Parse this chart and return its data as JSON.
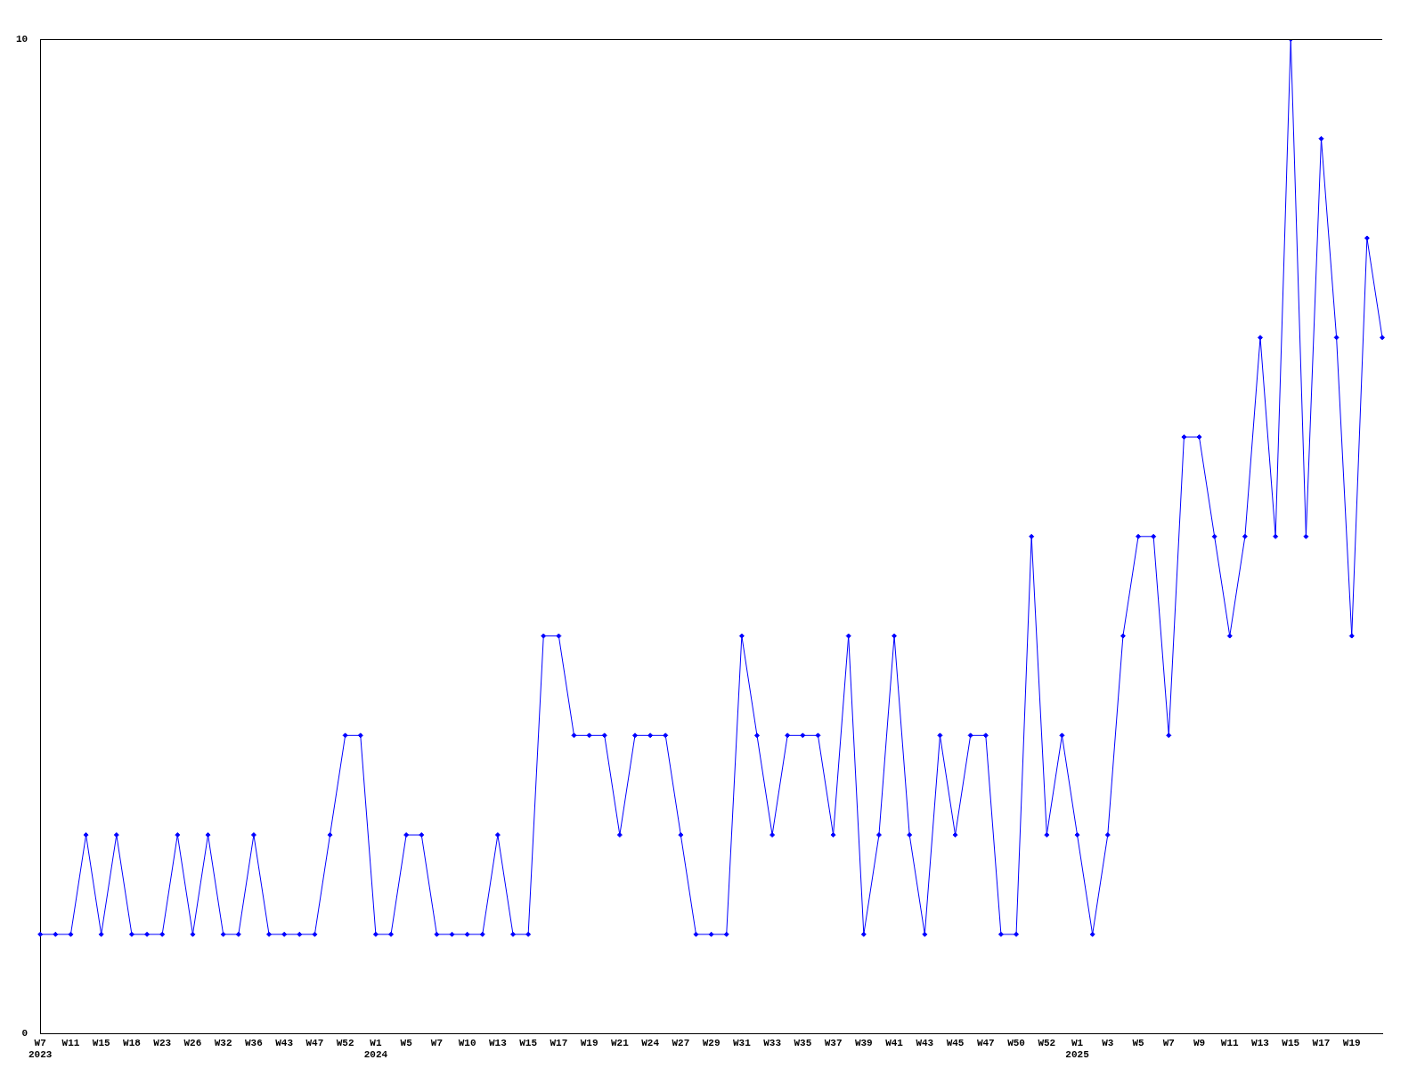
{
  "chart_data": {
    "type": "line",
    "categories": [
      "W7\n2023",
      null,
      "W11",
      null,
      "W15",
      null,
      "W18",
      null,
      "W23",
      null,
      "W26",
      null,
      "W32",
      null,
      "W36",
      null,
      "W43",
      null,
      "W47",
      null,
      "W52",
      null,
      "W1\n2024",
      null,
      "W5",
      null,
      "W7",
      null,
      "W10",
      null,
      "W13",
      null,
      "W15",
      null,
      "W17",
      null,
      "W19",
      null,
      "W21",
      null,
      "W24",
      null,
      "W27",
      null,
      "W29",
      null,
      "W31",
      null,
      "W33",
      null,
      "W35",
      null,
      "W37",
      null,
      "W39",
      null,
      "W41",
      null,
      "W43",
      null,
      "W45",
      null,
      "W47",
      null,
      "W50",
      null,
      "W52",
      null,
      "W1\n2025",
      null,
      "W3",
      null,
      "W5",
      null,
      "W7",
      null,
      "W9",
      null,
      "W11",
      null,
      "W13",
      null,
      "W15",
      null,
      "W17",
      null,
      "W19",
      null,
      null
    ],
    "series": [
      {
        "color": "#0000ff",
        "values": [
          1,
          1,
          1,
          2,
          1,
          2,
          1,
          1,
          1,
          2,
          1,
          2,
          1,
          1,
          2,
          1,
          1,
          1,
          1,
          2,
          3,
          3,
          1,
          1,
          2,
          2,
          1,
          1,
          1,
          1,
          2,
          1,
          1,
          4,
          4,
          3,
          3,
          3,
          2,
          3,
          3,
          3,
          2,
          1,
          1,
          1,
          4,
          3,
          2,
          3,
          3,
          3,
          2,
          4,
          1,
          2,
          4,
          2,
          1,
          3,
          2,
          3,
          3,
          1,
          1,
          5,
          2,
          3,
          2,
          1,
          2,
          4,
          5,
          5,
          3,
          6,
          6,
          5,
          4,
          5,
          7,
          5,
          10,
          5,
          9,
          7,
          4,
          8,
          7
        ]
      }
    ],
    "ylim": [
      0,
      10
    ],
    "yticks": [
      0,
      10
    ],
    "marker": "diamond",
    "line_style": "solid",
    "legend": false
  }
}
